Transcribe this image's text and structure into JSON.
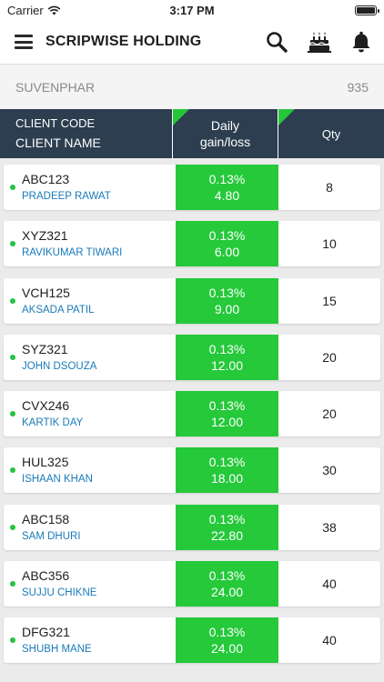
{
  "status_bar": {
    "carrier": "Carrier",
    "time": "3:17 PM",
    "battery_level": 1.0
  },
  "header": {
    "title": "SCRIPWISE HOLDING",
    "icons": [
      "menu-icon",
      "search-icon",
      "birthday-cake-icon",
      "bell-icon"
    ]
  },
  "scrip": {
    "name": "SUVENPHAR",
    "value": "935"
  },
  "table": {
    "col1_line1": "CLIENT CODE",
    "col1_line2": "CLIENT NAME",
    "col2_line1": "Daily",
    "col2_line2": "gain/loss",
    "col3": "Qty"
  },
  "colors": {
    "header_bg": "#2c3e50",
    "gain_green": "#25c93a",
    "name_blue": "#1a7ab8",
    "status_dot": "#26c241"
  },
  "rows": [
    {
      "code": "ABC123",
      "name": "PRADEEP RAWAT",
      "pct": "0.13%",
      "gain": "4.80",
      "qty": "8"
    },
    {
      "code": "XYZ321",
      "name": "RAVIKUMAR TIWARI",
      "pct": "0.13%",
      "gain": "6.00",
      "qty": "10"
    },
    {
      "code": "VCH125",
      "name": "AKSADA PATIL",
      "pct": "0.13%",
      "gain": "9.00",
      "qty": "15"
    },
    {
      "code": "SYZ321",
      "name": "JOHN DSOUZA",
      "pct": "0.13%",
      "gain": "12.00",
      "qty": "20"
    },
    {
      "code": "CVX246",
      "name": "KARTIK DAY",
      "pct": "0.13%",
      "gain": "12.00",
      "qty": "20"
    },
    {
      "code": "HUL325",
      "name": "ISHAAN KHAN",
      "pct": "0.13%",
      "gain": "18.00",
      "qty": "30"
    },
    {
      "code": "ABC158",
      "name": "SAM DHURI",
      "pct": "0.13%",
      "gain": "22.80",
      "qty": "38"
    },
    {
      "code": "ABC356",
      "name": "SUJJU CHIKNE",
      "pct": "0.13%",
      "gain": "24.00",
      "qty": "40"
    },
    {
      "code": "DFG321",
      "name": "SHUBH MANE",
      "pct": "0.13%",
      "gain": "24.00",
      "qty": "40"
    }
  ]
}
